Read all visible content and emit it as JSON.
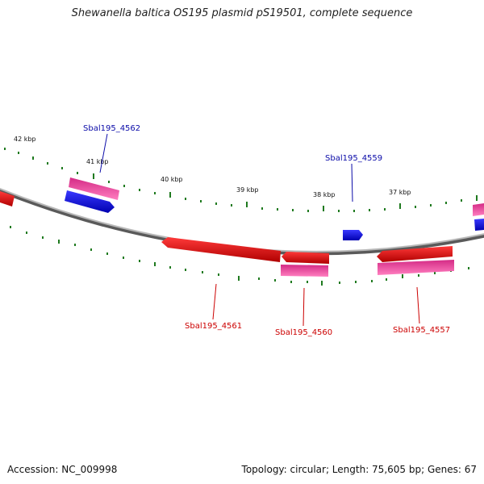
{
  "title": "Shewanella baltica OS195 plasmid pS19501, complete sequence",
  "footer": {
    "accession": "Accession: NC_009998",
    "summary": "Topology: circular; Length: 75,605 bp; Genes: 67"
  },
  "ruler": {
    "labels": [
      "42 kbp",
      "41 kbp",
      "40 kbp",
      "39 kbp",
      "38 kbp",
      "37 kbp"
    ]
  },
  "genes": {
    "forward": [
      "Sbal195_4562",
      "Sbal195_4559"
    ],
    "reverse": [
      "Sbal195_4561",
      "Sbal195_4560",
      "Sbal195_4557"
    ]
  },
  "colors": {
    "forward_label": "#0a0aa8",
    "reverse_label": "#cc0000",
    "forward_gene": "#1a1aee",
    "reverse_gene": "#ee0000",
    "feature_magenta": "#e0308a",
    "tick": "#1f7a1f",
    "backbone": "#8a8a8a"
  }
}
